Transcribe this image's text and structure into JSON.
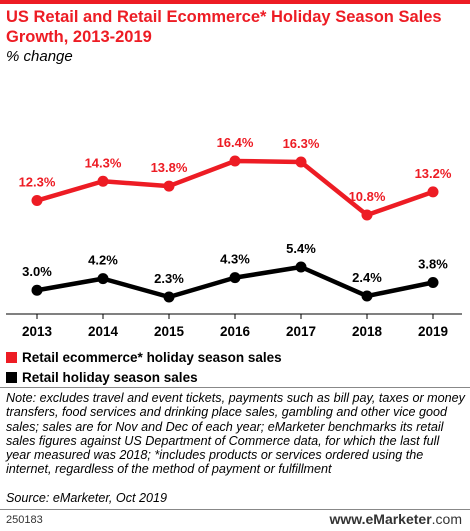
{
  "title": "US Retail and Retail Ecommerce* Holiday Season Sales Growth, 2013-2019",
  "subtitle": "% change",
  "chart_data": {
    "type": "line",
    "categories": [
      "2013",
      "2014",
      "2015",
      "2016",
      "2017",
      "2018",
      "2019"
    ],
    "series": [
      {
        "name": "Retail ecommerce* holiday season sales",
        "color": "#ed1c24",
        "values": [
          12.3,
          14.3,
          13.8,
          16.4,
          16.3,
          10.8,
          13.2
        ],
        "labels": [
          "12.3%",
          "14.3%",
          "13.8%",
          "16.4%",
          "16.3%",
          "10.8%",
          "13.2%"
        ]
      },
      {
        "name": "Retail holiday season sales",
        "color": "#000000",
        "values": [
          3.0,
          4.2,
          2.3,
          4.3,
          5.4,
          2.4,
          3.8
        ],
        "labels": [
          "3.0%",
          "4.2%",
          "2.3%",
          "4.3%",
          "5.4%",
          "2.4%",
          "3.8%"
        ]
      }
    ],
    "grid": false,
    "legend": "bottom-left"
  },
  "legend": [
    {
      "label": "Retail ecommerce* holiday season sales",
      "color": "#ed1c24"
    },
    {
      "label": "Retail holiday season sales",
      "color": "#000000"
    }
  ],
  "note": "Note: excludes travel and event tickets, payments such as bill pay, taxes or money transfers, food services and drinking place sales, gambling and other vice good sales; sales are for Nov and Dec of each year; eMarketer benchmarks its retail sales figures against US Department of Commerce data, for which the last full year measured was 2018; *includes products or services ordered using the internet, regardless of the method of payment or fulfillment",
  "source": "Source: eMarketer, Oct 2019",
  "footer_id": "250183",
  "brand": {
    "name": "eMarketer",
    "tld": ".com",
    "prefix": "www."
  }
}
